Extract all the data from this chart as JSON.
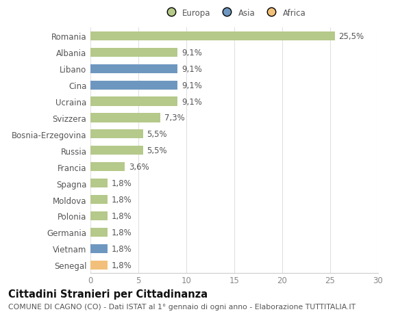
{
  "categories": [
    "Romania",
    "Albania",
    "Libano",
    "Cina",
    "Ucraina",
    "Svizzera",
    "Bosnia-Erzegovina",
    "Russia",
    "Francia",
    "Spagna",
    "Moldova",
    "Polonia",
    "Germania",
    "Vietnam",
    "Senegal"
  ],
  "values": [
    25.5,
    9.1,
    9.1,
    9.1,
    9.1,
    7.3,
    5.5,
    5.5,
    3.6,
    1.8,
    1.8,
    1.8,
    1.8,
    1.8,
    1.8
  ],
  "labels": [
    "25,5%",
    "9,1%",
    "9,1%",
    "9,1%",
    "9,1%",
    "7,3%",
    "5,5%",
    "5,5%",
    "3,6%",
    "1,8%",
    "1,8%",
    "1,8%",
    "1,8%",
    "1,8%",
    "1,8%"
  ],
  "continent": [
    "Europa",
    "Europa",
    "Asia",
    "Asia",
    "Europa",
    "Europa",
    "Europa",
    "Europa",
    "Europa",
    "Europa",
    "Europa",
    "Europa",
    "Europa",
    "Asia",
    "Africa"
  ],
  "colors": {
    "Europa": "#b5c98a",
    "Asia": "#6e97c0",
    "Africa": "#f2c07a"
  },
  "legend": [
    "Europa",
    "Asia",
    "Africa"
  ],
  "legend_colors": [
    "#b5c98a",
    "#6e97c0",
    "#f2c07a"
  ],
  "title": "Cittadini Stranieri per Cittadinanza",
  "subtitle": "COMUNE DI CAGNO (CO) - Dati ISTAT al 1° gennaio di ogni anno - Elaborazione TUTTITALIA.IT",
  "xlim": [
    0,
    30
  ],
  "xticks": [
    0,
    5,
    10,
    15,
    20,
    25,
    30
  ],
  "bg_color": "#ffffff",
  "grid_color": "#e0e0e0",
  "bar_height": 0.55,
  "label_fontsize": 8.5,
  "tick_fontsize": 8.5,
  "title_fontsize": 10.5,
  "subtitle_fontsize": 7.8
}
